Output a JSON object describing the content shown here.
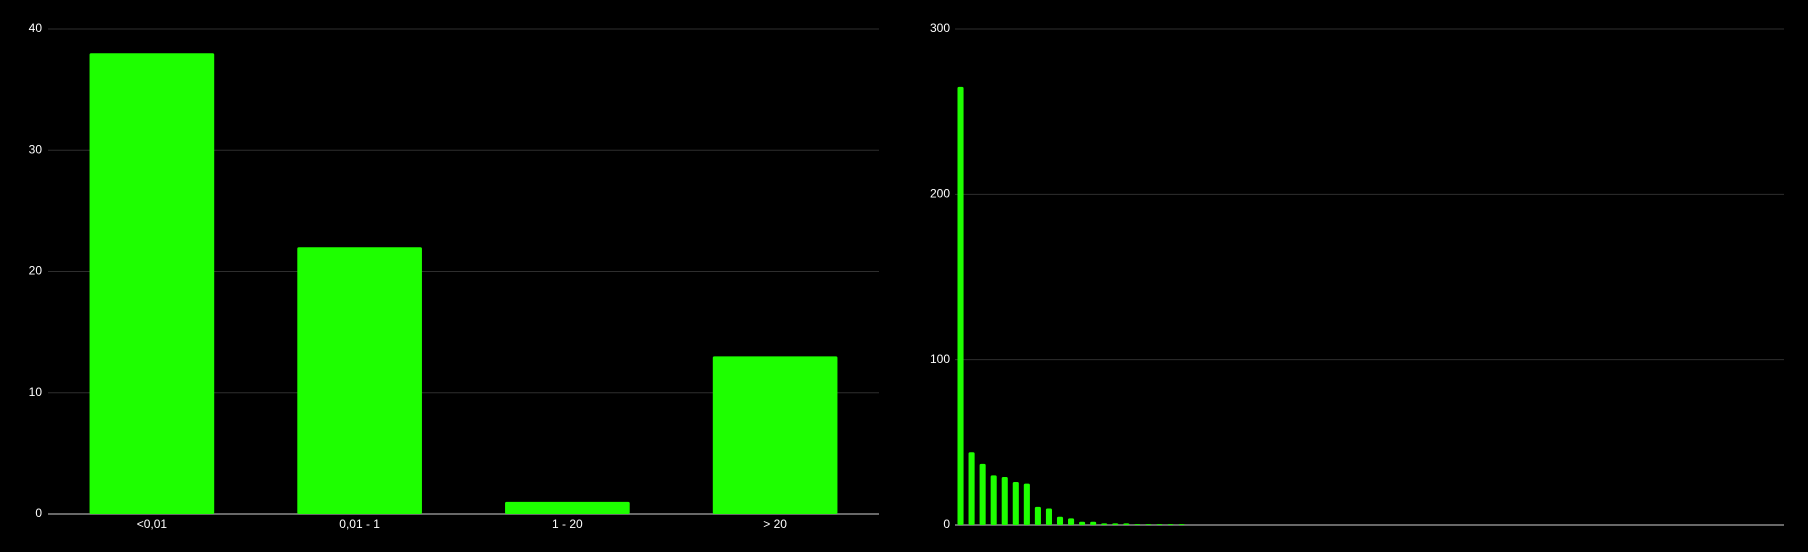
{
  "chart_data": [
    {
      "type": "bar",
      "categories": [
        "<0,01",
        "0,01 - 1",
        "1 - 20",
        "> 20"
      ],
      "values": [
        38,
        22,
        1,
        13
      ],
      "color": "#1eff00",
      "ylim": [
        0,
        40
      ],
      "yticks": [
        0,
        10,
        20,
        30,
        40
      ],
      "grid": true
    },
    {
      "type": "bar",
      "categories": [
        null,
        null,
        null,
        null,
        null,
        null,
        null,
        null,
        null,
        null,
        null,
        null,
        null,
        null,
        null,
        null,
        null,
        null,
        null,
        null,
        null,
        null,
        null,
        null,
        null,
        null,
        null,
        null,
        null,
        null,
        null,
        null,
        null,
        null,
        null,
        null,
        null,
        null,
        null,
        null,
        null,
        null,
        null,
        null,
        null,
        null,
        null,
        null,
        null,
        null,
        null,
        null,
        null,
        null,
        null,
        null,
        null,
        null,
        null,
        null,
        null,
        null,
        null,
        null,
        null,
        null,
        null,
        null,
        null,
        null,
        null,
        null,
        null,
        null,
        null
      ],
      "values": [
        265,
        44,
        37,
        30,
        29,
        26,
        25,
        11,
        10,
        5,
        4,
        2,
        2,
        1,
        1,
        1,
        0.5,
        0.5,
        0.5,
        0.5,
        0.5,
        0,
        0,
        0,
        0,
        0,
        0,
        0,
        0,
        0,
        0,
        0,
        0,
        0,
        0,
        0,
        0,
        0,
        0,
        0,
        0,
        0,
        0,
        0,
        0,
        0,
        0,
        0,
        0,
        0,
        0,
        0,
        0,
        0,
        0,
        0,
        0,
        0,
        0,
        0,
        0,
        0,
        0,
        0,
        0,
        0,
        0,
        0,
        0,
        0,
        0,
        0,
        0,
        0,
        0
      ],
      "color": "#1eff00",
      "ylim": [
        0,
        300
      ],
      "yticks": [
        0,
        100,
        200,
        300
      ],
      "grid": true
    }
  ]
}
